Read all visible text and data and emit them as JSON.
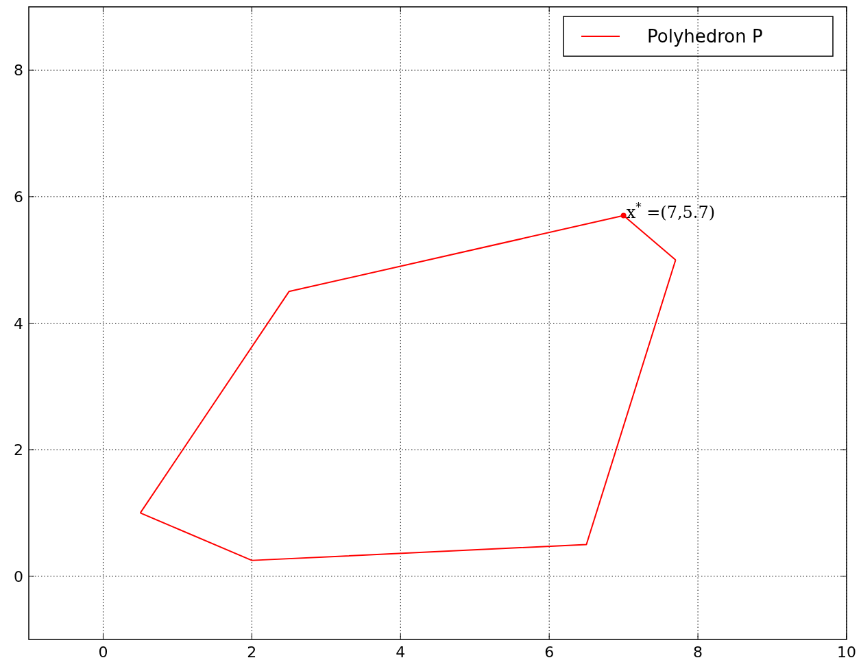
{
  "chart_data": {
    "type": "line",
    "xlim": [
      -1,
      10
    ],
    "xticks": [
      0,
      2,
      4,
      6,
      8,
      10
    ],
    "ylim": [
      -1,
      9
    ],
    "yticks": [
      0,
      2,
      4,
      6,
      8
    ],
    "grid": true,
    "legend": "top right",
    "series": [
      {
        "name": "Polyhedron P",
        "color": "#ff0000",
        "marker": "none",
        "x": [
          0.5,
          2,
          6.5,
          7.7
        ],
        "values": [
          1,
          0.25,
          0.5,
          5
        ]
      },
      {
        "color": "#ff0000",
        "marker": "none",
        "x": [
          0.5,
          2.5,
          7,
          7.7
        ],
        "values": [
          1,
          4.5,
          5.7,
          5
        ]
      },
      {
        "type": "scatter",
        "color": "#ff0000",
        "marker": "circle",
        "x": [
          7
        ],
        "values": [
          5.7
        ]
      }
    ],
    "annotations": [
      {
        "text": "x$^{*}$ =(7,5.7)",
        "x": 7,
        "y": 5.7
      }
    ]
  }
}
